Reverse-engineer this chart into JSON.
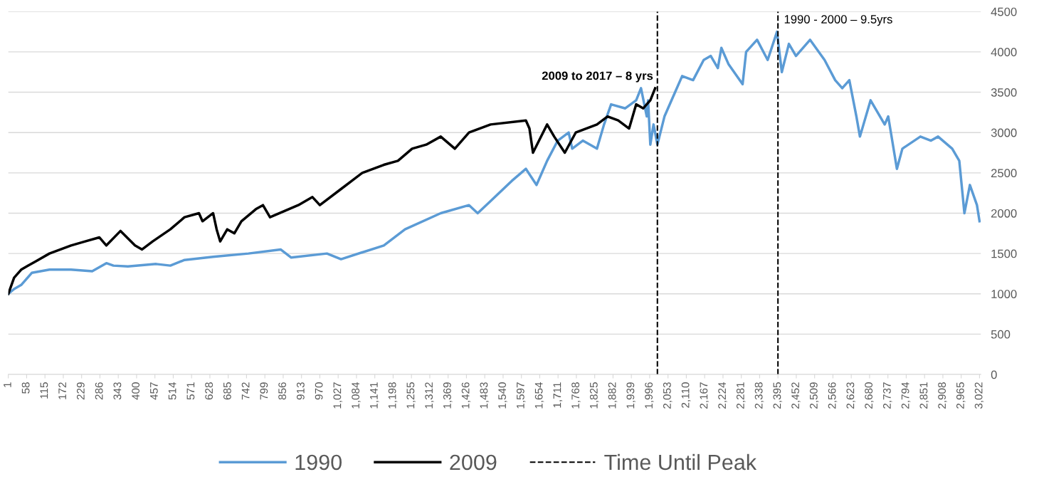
{
  "chart_data": {
    "type": "line",
    "series": [
      {
        "name": "1990",
        "color": "#5b9bd5",
        "x": [
          1,
          19,
          41,
          74,
          129,
          196,
          262,
          306,
          328,
          373,
          461,
          505,
          549,
          638,
          748,
          848,
          881,
          992,
          1036,
          1169,
          1235,
          1346,
          1434,
          1461,
          1501,
          1567,
          1611,
          1644,
          1677,
          1710,
          1744,
          1755,
          1788,
          1832,
          1854,
          1876,
          1920,
          1954,
          1969,
          1987,
          1991,
          1998,
          2008,
          2020,
          2042,
          2075,
          2097,
          2131,
          2164,
          2186,
          2208,
          2219,
          2241,
          2285,
          2296,
          2330,
          2363,
          2392,
          2407,
          2429,
          2451,
          2495,
          2540,
          2573,
          2595,
          2617,
          2639,
          2650,
          2683,
          2727,
          2738,
          2765,
          2782,
          2838,
          2871,
          2893,
          2937,
          2959,
          2975,
          2992,
          3014,
          3022
        ],
        "values": [
          1000,
          1060,
          1110,
          1260,
          1300,
          1300,
          1280,
          1380,
          1350,
          1340,
          1370,
          1350,
          1420,
          1460,
          1500,
          1550,
          1450,
          1500,
          1430,
          1600,
          1800,
          2000,
          2100,
          2000,
          2150,
          2400,
          2550,
          2350,
          2650,
          2900,
          3000,
          2800,
          2900,
          2800,
          3100,
          3350,
          3300,
          3400,
          3550,
          3200,
          3400,
          2850,
          3100,
          2850,
          3200,
          3500,
          3700,
          3650,
          3900,
          3950,
          3800,
          4050,
          3850,
          3600,
          4000,
          4150,
          3900,
          4250,
          3750,
          4100,
          3950,
          4150,
          3900,
          3650,
          3550,
          3650,
          3200,
          2950,
          3400,
          3100,
          3200,
          2550,
          2800,
          2950,
          2900,
          2950,
          2800,
          2650,
          2000,
          2350,
          2100,
          1900
        ]
      },
      {
        "name": "2009",
        "color": "#000000",
        "x": [
          1,
          19,
          41,
          63,
          85,
          129,
          196,
          240,
          284,
          306,
          350,
          395,
          417,
          450,
          505,
          549,
          594,
          605,
          638,
          649,
          660,
          682,
          704,
          726,
          771,
          793,
          815,
          903,
          947,
          970,
          1036,
          1102,
          1169,
          1213,
          1257,
          1301,
          1346,
          1390,
          1434,
          1501,
          1611,
          1622,
          1633,
          1677,
          1699,
          1732,
          1766,
          1832,
          1865,
          1898,
          1932,
          1954,
          1976,
          1998,
          2013
        ],
        "values": [
          1000,
          1200,
          1300,
          1350,
          1400,
          1500,
          1600,
          1650,
          1700,
          1600,
          1780,
          1600,
          1550,
          1650,
          1800,
          1950,
          2000,
          1900,
          2000,
          1800,
          1650,
          1800,
          1750,
          1900,
          2050,
          2100,
          1950,
          2100,
          2200,
          2100,
          2300,
          2500,
          2600,
          2650,
          2800,
          2850,
          2950,
          2800,
          3000,
          3100,
          3150,
          3050,
          2750,
          3100,
          2950,
          2750,
          3000,
          3100,
          3200,
          3150,
          3050,
          3350,
          3300,
          3400,
          3550
        ]
      }
    ],
    "xlim": [
      1,
      3026
    ],
    "xticks": [
      1,
      58,
      115,
      172,
      229,
      286,
      343,
      400,
      457,
      514,
      571,
      628,
      685,
      742,
      799,
      856,
      913,
      970,
      {
        "value": 1027,
        "label": "1,027"
      },
      {
        "value": 1084,
        "label": "1,084"
      },
      {
        "value": 1141,
        "label": "1,141"
      },
      {
        "value": 1198,
        "label": "1,198"
      },
      {
        "value": 1255,
        "label": "1,255"
      },
      {
        "value": 1312,
        "label": "1,312"
      },
      {
        "value": 1369,
        "label": "1,369"
      },
      {
        "value": 1426,
        "label": "1,426"
      },
      {
        "value": 1483,
        "label": "1,483"
      },
      {
        "value": 1540,
        "label": "1,540"
      },
      {
        "value": 1597,
        "label": "1,597"
      },
      {
        "value": 1654,
        "label": "1,654"
      },
      {
        "value": 1711,
        "label": "1,711"
      },
      {
        "value": 1768,
        "label": "1,768"
      },
      {
        "value": 1825,
        "label": "1,825"
      },
      {
        "value": 1882,
        "label": "1,882"
      },
      {
        "value": 1939,
        "label": "1,939"
      },
      {
        "value": 1996,
        "label": "1,996"
      },
      {
        "value": 2053,
        "label": "2,053"
      },
      {
        "value": 2110,
        "label": "2,110"
      },
      {
        "value": 2167,
        "label": "2,167"
      },
      {
        "value": 2224,
        "label": "2,224"
      },
      {
        "value": 2281,
        "label": "2,281"
      },
      {
        "value": 2338,
        "label": "2,338"
      },
      {
        "value": 2395,
        "label": "2,395"
      },
      {
        "value": 2452,
        "label": "2,452"
      },
      {
        "value": 2509,
        "label": "2,509"
      },
      {
        "value": 2566,
        "label": "2,566"
      },
      {
        "value": 2623,
        "label": "2,623"
      },
      {
        "value": 2680,
        "label": "2,680"
      },
      {
        "value": 2737,
        "label": "2,737"
      },
      {
        "value": 2794,
        "label": "2,794"
      },
      {
        "value": 2851,
        "label": "2,851"
      },
      {
        "value": 2908,
        "label": "2,908"
      },
      {
        "value": 2965,
        "label": "2,965"
      },
      {
        "value": 3022,
        "label": "3,022"
      }
    ],
    "ylim": [
      0,
      4500
    ],
    "yticks": [
      0,
      500,
      1000,
      1500,
      2000,
      2500,
      3000,
      3500,
      4000,
      4500
    ],
    "grid": "y",
    "legend": "bottom",
    "line_style": "solid",
    "ref_lines": [
      {
        "axis": "x",
        "value": 2020,
        "label": "Time Until Peak",
        "color": "#000000",
        "line_style": "dashed"
      },
      {
        "axis": "x",
        "value": 2395,
        "color": "#000000",
        "line_style": "dashed"
      }
    ],
    "annotations": [
      {
        "text": "2009 to 2017 – 8 yrs",
        "x": 2013,
        "y": 3550
      },
      {
        "text": "1990 - 2000 – 9.5yrs",
        "x": 2395,
        "y": 4250
      }
    ]
  }
}
